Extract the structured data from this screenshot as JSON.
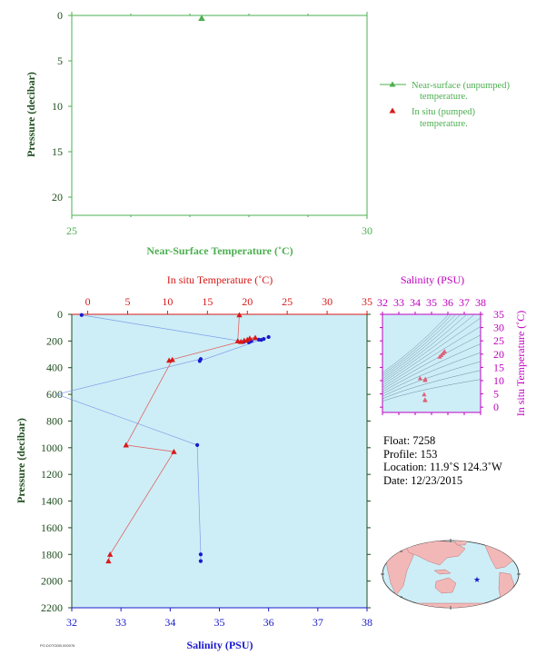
{
  "colors": {
    "green": "#4caf50",
    "dark_green": "#1e4d1e",
    "red": "#d81919",
    "blue": "#1a1acd",
    "magenta": "#c000c0",
    "pink": "#e0607a",
    "plot_bg": "#cdeef7",
    "land": "#f2b8b8",
    "ocean": "#cdeef7"
  },
  "chart_data": [
    {
      "id": "surface",
      "type": "scatter",
      "xlabel": "Near-Surface Temperature (˚C)",
      "ylabel": "Pressure (decibar)",
      "xlim": [
        25,
        30
      ],
      "ylim": [
        22,
        0
      ],
      "x_ticks": [
        "25",
        "30"
      ],
      "y_ticks": [
        "0",
        "5",
        "10",
        "15",
        "20"
      ],
      "series": [
        {
          "name": "Near-surface (unpumped) temperature.",
          "marker": "triangle",
          "color": "green",
          "points": [
            [
              27.2,
              0.3
            ]
          ]
        },
        {
          "name": "In situ (pumped) temperature.",
          "marker": "triangle",
          "color": "red",
          "points": []
        }
      ],
      "legend": [
        "Near-surface (unpumped)",
        "temperature.",
        "In situ (pumped)",
        "temperature."
      ]
    },
    {
      "id": "profile",
      "type": "scatter",
      "xlabel": "Salinity (PSU)",
      "x2label": "In situ Temperature (˚C)",
      "ylabel": "Pressure (decibar)",
      "xlim": [
        32,
        38
      ],
      "x2lim": [
        -2,
        35
      ],
      "ylim": [
        2200,
        0
      ],
      "x_ticks": [
        "32",
        "33",
        "34",
        "35",
        "36",
        "37",
        "38"
      ],
      "x2_ticks": [
        "0",
        "5",
        "10",
        "15",
        "20",
        "25",
        "30",
        "35"
      ],
      "y_ticks": [
        "0",
        "200",
        "400",
        "600",
        "800",
        "1000",
        "1200",
        "1400",
        "1600",
        "1800",
        "2000",
        "2200"
      ],
      "temperature": [
        [
          19.0,
          5
        ],
        [
          18.8,
          200
        ],
        [
          19.2,
          205
        ],
        [
          19.6,
          196
        ],
        [
          20.0,
          190
        ],
        [
          20.3,
          180
        ],
        [
          21.0,
          175
        ],
        [
          10.2,
          345
        ],
        [
          10.6,
          340
        ],
        [
          4.8,
          980
        ],
        [
          10.8,
          1030
        ],
        [
          2.8,
          1800
        ],
        [
          2.6,
          1850
        ]
      ],
      "salinity": [
        [
          32.2,
          5
        ],
        [
          35.5,
          205
        ],
        [
          35.6,
          210
        ],
        [
          35.65,
          200
        ],
        [
          35.8,
          190
        ],
        [
          35.85,
          192
        ],
        [
          35.9,
          185
        ],
        [
          36.0,
          170
        ],
        [
          34.6,
          350
        ],
        [
          34.62,
          335
        ],
        [
          31.7,
          600
        ],
        [
          34.55,
          980
        ],
        [
          34.62,
          1800
        ],
        [
          34.62,
          1850
        ]
      ]
    },
    {
      "id": "ts",
      "type": "scatter",
      "xlabel": "Salinity (PSU)",
      "ylabel": "In situ Temperature (˚C)",
      "xlim": [
        32,
        38
      ],
      "ylim": [
        -2,
        35
      ],
      "x_ticks": [
        "32",
        "33",
        "34",
        "35",
        "36",
        "37",
        "38"
      ],
      "y_ticks": [
        "0",
        "5",
        "10",
        "15",
        "20",
        "25",
        "30",
        "35"
      ],
      "points": [
        [
          35.5,
          19.0
        ],
        [
          35.6,
          19.6
        ],
        [
          35.7,
          20.3
        ],
        [
          35.8,
          21.0
        ],
        [
          34.6,
          10.2
        ],
        [
          34.62,
          10.6
        ],
        [
          34.3,
          10.9
        ],
        [
          34.55,
          4.8
        ],
        [
          34.6,
          2.8
        ],
        [
          34.62,
          2.6
        ]
      ]
    }
  ],
  "info": {
    "float": "Float:  7258",
    "profile": "Profile:  153",
    "location": "Location:  11.9˚S  124.3˚W",
    "date": "Date:  12/23/2015"
  },
  "credit": "PO.DOTODB.000076"
}
